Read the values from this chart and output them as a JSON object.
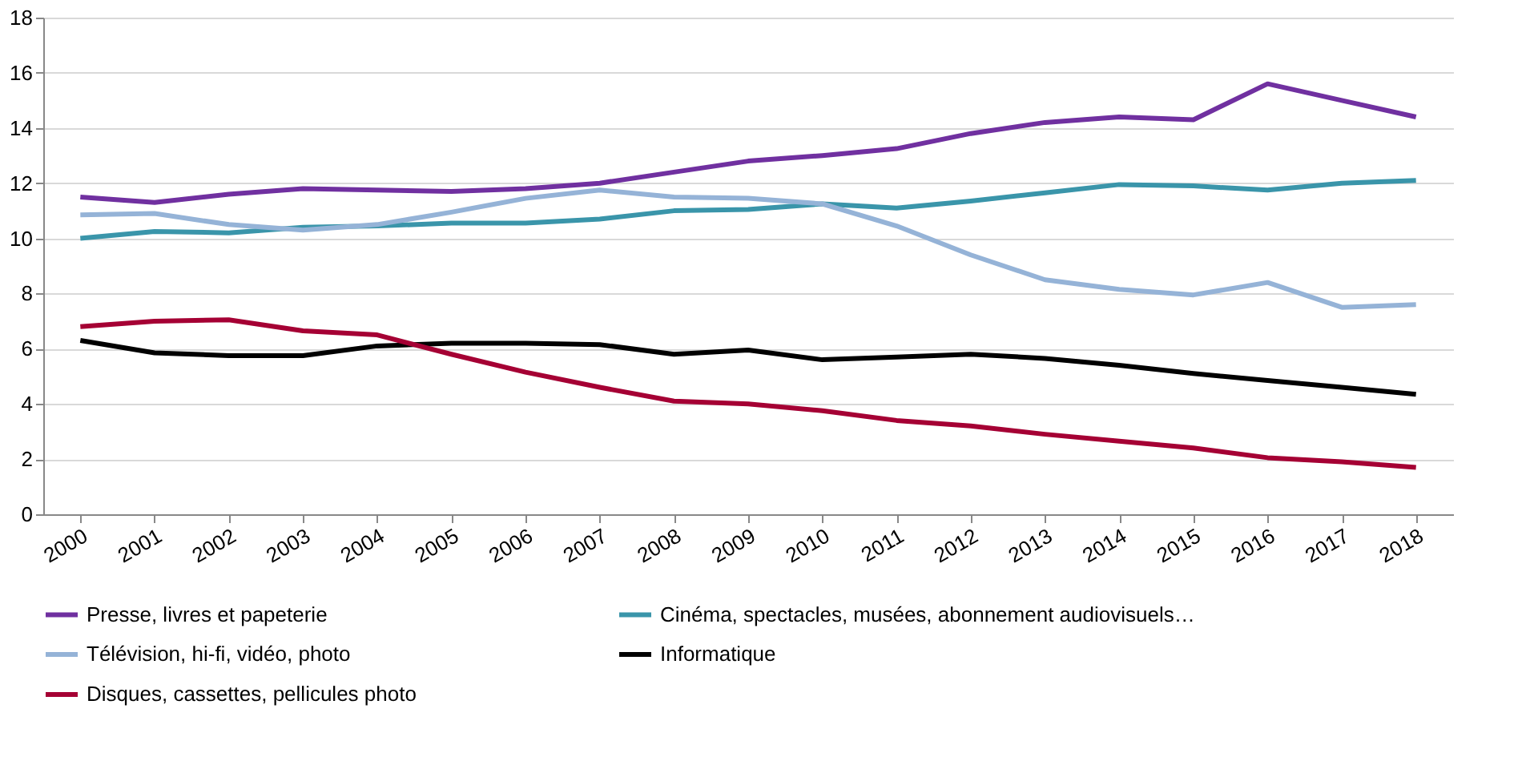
{
  "chart_data": {
    "type": "line",
    "categories": [
      "2000",
      "2001",
      "2002",
      "2003",
      "2004",
      "2005",
      "2006",
      "2007",
      "2008",
      "2009",
      "2010",
      "2011",
      "2012",
      "2013",
      "2014",
      "2015",
      "2016",
      "2017",
      "2018"
    ],
    "series": [
      {
        "name": "Presse, livres et papeterie",
        "color": "#7030a0",
        "values": [
          11.5,
          11.3,
          11.6,
          11.8,
          11.75,
          11.7,
          11.8,
          12.0,
          12.4,
          12.8,
          13.0,
          13.25,
          13.8,
          14.2,
          14.4,
          14.3,
          15.6,
          15.0,
          14.4
        ]
      },
      {
        "name": "Cinéma, spectacles, musées, abonnement audiovisuels…",
        "color": "#3a95aa",
        "values": [
          10.0,
          10.25,
          10.2,
          10.4,
          10.45,
          10.55,
          10.55,
          10.7,
          11.0,
          11.05,
          11.25,
          11.1,
          11.35,
          11.65,
          11.95,
          11.9,
          11.75,
          12.0,
          12.1
        ]
      },
      {
        "name": "Télévision, hi-fi, vidéo, photo",
        "color": "#95b3d7",
        "values": [
          10.85,
          10.9,
          10.5,
          10.3,
          10.5,
          10.95,
          11.45,
          11.75,
          11.5,
          11.45,
          11.25,
          10.45,
          9.4,
          8.5,
          8.15,
          7.95,
          8.4,
          7.5,
          7.6
        ]
      },
      {
        "name": "Informatique",
        "color": "#000000",
        "values": [
          6.3,
          5.85,
          5.75,
          5.75,
          6.1,
          6.2,
          6.2,
          6.15,
          5.8,
          5.95,
          5.6,
          5.7,
          5.8,
          5.65,
          5.4,
          5.1,
          4.85,
          4.6,
          4.35
        ]
      },
      {
        "name": "Disques, cassettes, pellicules photo",
        "color": "#a50034",
        "values": [
          6.8,
          7.0,
          7.05,
          6.65,
          6.5,
          5.8,
          5.15,
          4.6,
          4.1,
          4.0,
          3.75,
          3.4,
          3.2,
          2.9,
          2.65,
          2.4,
          2.05,
          1.9,
          1.7
        ]
      }
    ],
    "ylim": [
      0,
      18
    ],
    "yticks": [
      0,
      2,
      4,
      6,
      8,
      10,
      12,
      14,
      16,
      18
    ],
    "grid": "y",
    "legend": "bottom",
    "marker": "none",
    "line_style": "solid"
  }
}
